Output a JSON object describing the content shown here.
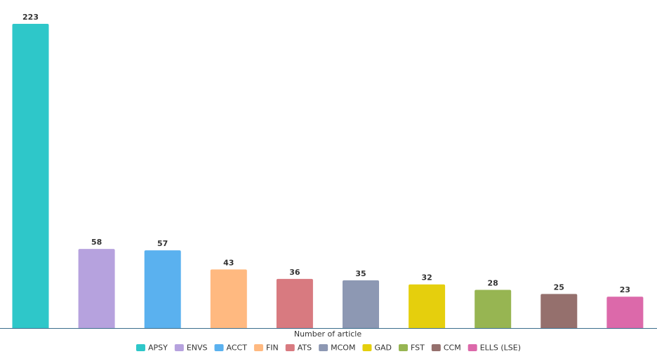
{
  "chart_data": {
    "type": "bar",
    "x_label": "Number of article",
    "categories": [
      "APSY",
      "ENVS",
      "ACCT",
      "FIN",
      "ATS",
      "MCOM",
      "GAD",
      "FST",
      "CCM",
      "ELLS (LSE)"
    ],
    "values": [
      223,
      58,
      57,
      43,
      36,
      35,
      32,
      28,
      25,
      23
    ],
    "colors": [
      "#2ec7c9",
      "#b6a2de",
      "#5ab1ef",
      "#ffb980",
      "#d87a80",
      "#8d98b3",
      "#e5cf0d",
      "#97b552",
      "#95706d",
      "#dc69aa"
    ]
  }
}
